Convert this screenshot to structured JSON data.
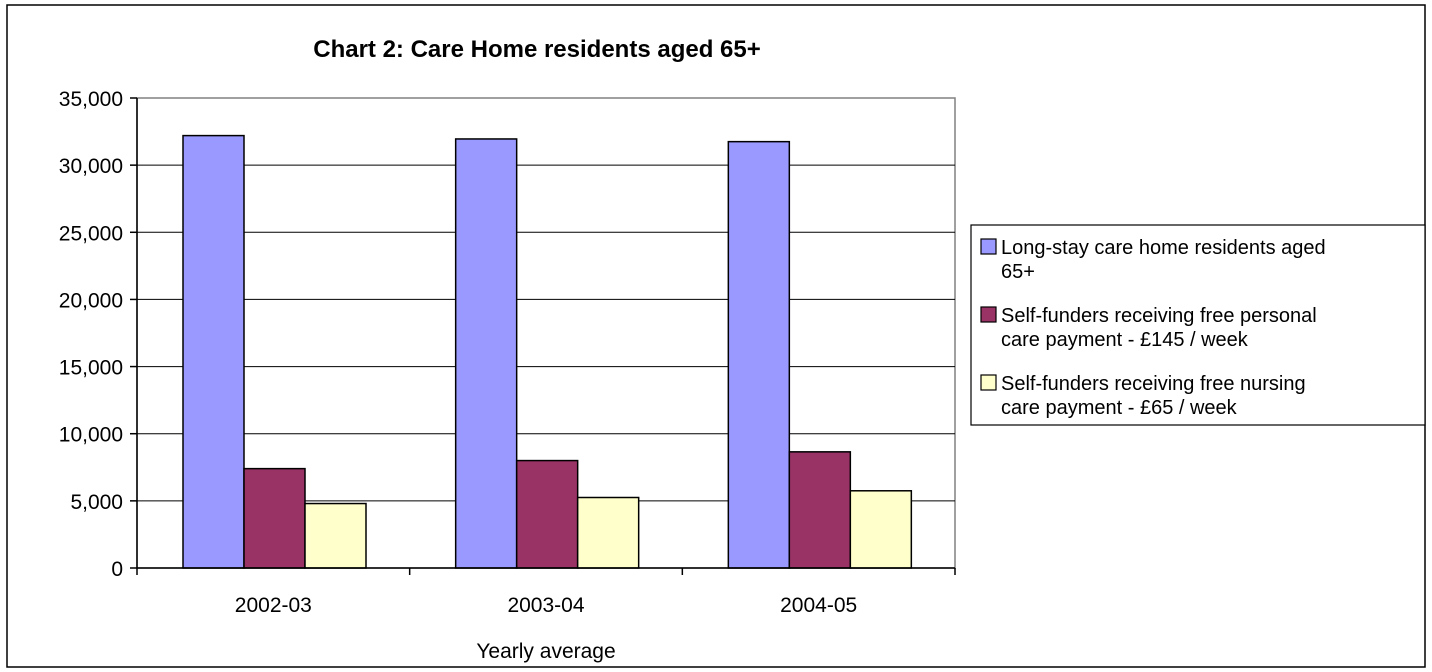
{
  "chart_data": {
    "type": "bar",
    "title": "Chart 2: Care Home residents aged 65+",
    "xlabel": "Yearly average",
    "ylabel": "",
    "categories": [
      "2002-03",
      "2003-04",
      "2004-05"
    ],
    "ylim": [
      0,
      35000
    ],
    "yticks": [
      "0",
      "5,000",
      "10,000",
      "15,000",
      "20,000",
      "25,000",
      "30,000",
      "35,000"
    ],
    "ytick_values": [
      0,
      5000,
      10000,
      15000,
      20000,
      25000,
      30000,
      35000
    ],
    "grid": true,
    "legend_position": "right",
    "series": [
      {
        "name_lines": [
          "Long-stay care home residents aged",
          "65+"
        ],
        "color": "#9999ff",
        "values": [
          32200,
          31950,
          31750
        ]
      },
      {
        "name_lines": [
          "Self-funders receiving free personal",
          "care payment - £145 / week"
        ],
        "color": "#993366",
        "values": [
          7400,
          8000,
          8650
        ]
      },
      {
        "name_lines": [
          "Self-funders receiving free nursing",
          "care payment - £65 / week"
        ],
        "color": "#ffffcc",
        "values": [
          4800,
          5250,
          5750
        ]
      }
    ]
  }
}
